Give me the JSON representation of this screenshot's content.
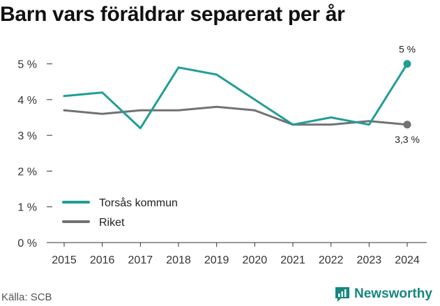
{
  "chart_data": {
    "type": "line",
    "title": "Barn vars föräldrar separerat per år",
    "x": [
      2015,
      2016,
      2017,
      2018,
      2019,
      2020,
      2021,
      2022,
      2023,
      2024
    ],
    "series": [
      {
        "name": "Torsås kommun",
        "color": "#1f9e96",
        "values": [
          4.1,
          4.2,
          3.2,
          4.9,
          4.7,
          4.0,
          3.3,
          3.5,
          3.3,
          5.0
        ],
        "end_label": "5 %"
      },
      {
        "name": "Riket",
        "color": "#727272",
        "values": [
          3.7,
          3.6,
          3.7,
          3.7,
          3.8,
          3.7,
          3.3,
          3.3,
          3.4,
          3.3
        ],
        "end_label": "3,3 %"
      }
    ],
    "yticks": [
      "0 %",
      "1 %",
      "2 %",
      "3 %",
      "4 %",
      "5 %"
    ],
    "ylim": [
      0,
      5.5
    ],
    "grid": false,
    "legend_position": "bottom-left"
  },
  "source": "Källa: SCB",
  "brand": {
    "name": "Newsworthy",
    "color": "#14877f",
    "icon": "newsworthy-logo-icon"
  }
}
